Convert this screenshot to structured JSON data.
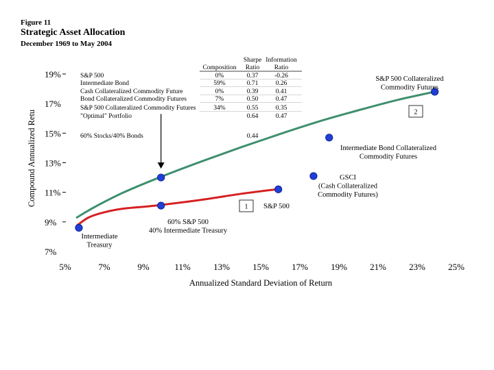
{
  "figure_label": "Figure 11",
  "title": "Strategic Asset Allocation",
  "subtitle": "December 1969 to May 2004",
  "chart_data": {
    "type": "scatter",
    "xlabel": "Annualized Standard Deviation of Return",
    "ylabel": "Compound Annualized Retu",
    "xlim": [
      5,
      25
    ],
    "ylim": [
      7,
      19
    ],
    "x_ticks": [
      "5%",
      "7%",
      "9%",
      "11%",
      "13%",
      "15%",
      "17%",
      "19%",
      "21%",
      "23%",
      "25%"
    ],
    "y_ticks": [
      "7%",
      "9%",
      "11%",
      "13%",
      "15%",
      "17%",
      "19%"
    ],
    "grid": false,
    "curves": [
      {
        "name": "efficient frontier (green)",
        "color": "#3f8f6e",
        "points": [
          [
            5.6,
            9.3
          ],
          [
            6.5,
            10.0
          ],
          [
            8,
            11.0
          ],
          [
            10,
            12.1
          ],
          [
            12,
            13.1
          ],
          [
            14,
            14.05
          ],
          [
            16,
            14.95
          ],
          [
            18,
            15.8
          ],
          [
            20,
            16.55
          ],
          [
            22,
            17.25
          ],
          [
            23.9,
            17.8
          ]
        ]
      },
      {
        "name": "stock/bond mix (red)",
        "color": "#d62020",
        "points": [
          [
            5.6,
            8.75
          ],
          [
            6.2,
            9.3
          ],
          [
            7,
            9.65
          ],
          [
            8,
            9.9
          ],
          [
            9.6,
            10.1
          ],
          [
            12,
            10.5
          ],
          [
            14,
            10.9
          ],
          [
            15.8,
            11.2
          ]
        ]
      }
    ],
    "points": [
      {
        "x": 5.7,
        "y": 8.6,
        "label": "Intermediate Treasury",
        "label_lines": [
          "Intermediate",
          "Treasury"
        ]
      },
      {
        "x": 9.9,
        "y": 10.1,
        "label": "60% S&P 500 40% Intermediate Treasury",
        "label_lines": [
          "60% S&P 500",
          "40% Intermediate Treasury"
        ]
      },
      {
        "x": 9.9,
        "y": 12.0,
        "label": ""
      },
      {
        "x": 15.9,
        "y": 11.2,
        "label": "S&P 500",
        "label_lines": [
          "S&P 500"
        ]
      },
      {
        "x": 17.7,
        "y": 12.1,
        "label": "GSCI (Cash Collateralized Commodity Futures)",
        "label_lines": [
          "GSCI",
          "(Cash Collateralized",
          "Commodity Futures)"
        ]
      },
      {
        "x": 18.5,
        "y": 14.7,
        "label": "Intermediate Bond Collateralized Commodity Futures",
        "label_lines": [
          "Intermediate Bond Collateralized",
          "Commodity Futures"
        ]
      },
      {
        "x": 23.9,
        "y": 17.8,
        "label": "S&P 500 Collateralized Commodity Futures",
        "label_lines": [
          "S&P 500 Collateralized",
          "Commodity Futures"
        ]
      }
    ],
    "boxed_markers": [
      "1",
      "2"
    ],
    "arrow": {
      "x": 9.9,
      "y_from": 16.3,
      "y_to": 12.6
    },
    "table": {
      "headers": [
        [
          "",
          ""
        ],
        [
          "",
          "Composition"
        ],
        [
          "Sharpe",
          "Ratio"
        ],
        [
          "Information",
          "Ratio"
        ]
      ],
      "rows": [
        [
          "S&P 500",
          "0%",
          "0.37",
          "-0.26"
        ],
        [
          "Intermediate Bond",
          "59%",
          "0.71",
          "0.26"
        ],
        [
          "Cash Collateralized Commodity Future",
          "0%",
          "0.39",
          "0.41"
        ],
        [
          "Bond Collateralized Commodity Futures",
          "7%",
          "0.50",
          "0.47"
        ],
        [
          "S&P 500 Collateralized Commodity Futures",
          "34%",
          "0.55",
          "0.35"
        ],
        [
          "\"Optimal\" Portfolio",
          "",
          "0.64",
          "0.47"
        ],
        [
          "60% Stocks/40% Bonds",
          "",
          "0.44",
          ""
        ]
      ]
    }
  }
}
